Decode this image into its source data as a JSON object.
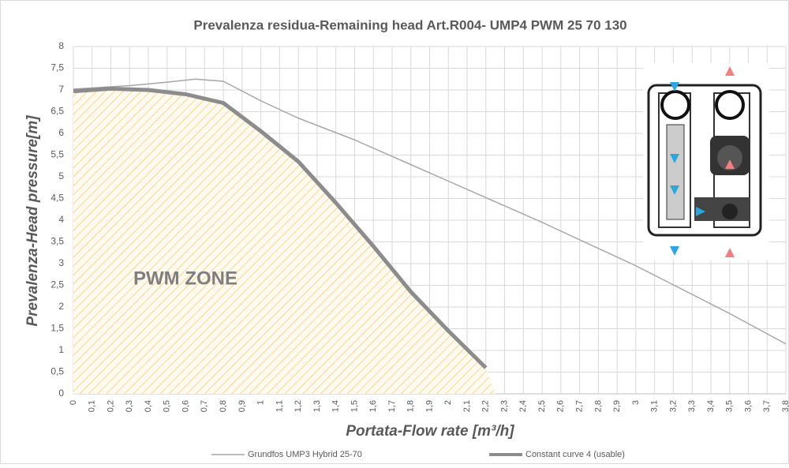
{
  "chart_data": {
    "type": "line",
    "title": "Prevalenza residua-Remaining head Art.R004- UMP4 PWM 25 70 130",
    "x_label": "Portata-Flow rate [m³/h]",
    "y_label": "Prevalenza-Head pressure[m]",
    "annotation": "PWM ZONE",
    "grid": true,
    "legend": "bottom",
    "xlim": [
      0,
      3.8
    ],
    "ylim": [
      0,
      8
    ],
    "xticks": [
      0,
      {
        "value": 0.1,
        "label": "0,1"
      },
      {
        "value": 0.2,
        "label": "0,2"
      },
      {
        "value": 0.3,
        "label": "0,3"
      },
      {
        "value": 0.4,
        "label": "0,4"
      },
      {
        "value": 0.5,
        "label": "0,5"
      },
      {
        "value": 0.6,
        "label": "0,6"
      },
      {
        "value": 0.7,
        "label": "0,7"
      },
      {
        "value": 0.8,
        "label": "0,8"
      },
      {
        "value": 0.9,
        "label": "0,9"
      },
      1,
      {
        "value": 1.1,
        "label": "1,1"
      },
      {
        "value": 1.2,
        "label": "1,2"
      },
      {
        "value": 1.3,
        "label": "1,3"
      },
      {
        "value": 1.4,
        "label": "1,4"
      },
      {
        "value": 1.5,
        "label": "1,5"
      },
      {
        "value": 1.6,
        "label": "1,6"
      },
      {
        "value": 1.7,
        "label": "1,7"
      },
      {
        "value": 1.8,
        "label": "1,8"
      },
      {
        "value": 1.9,
        "label": "1,9"
      },
      2,
      {
        "value": 2.1,
        "label": "2,1"
      },
      {
        "value": 2.2,
        "label": "2,2"
      },
      {
        "value": 2.3,
        "label": "2,3"
      },
      {
        "value": 2.4,
        "label": "2,4"
      },
      {
        "value": 2.5,
        "label": "2,5"
      },
      {
        "value": 2.6,
        "label": "2,6"
      },
      {
        "value": 2.7,
        "label": "2,7"
      },
      {
        "value": 2.8,
        "label": "2,8"
      },
      {
        "value": 2.9,
        "label": "2,9"
      },
      3,
      {
        "value": 3.1,
        "label": "3,1"
      },
      {
        "value": 3.2,
        "label": "3,2"
      },
      {
        "value": 3.3,
        "label": "3,3"
      },
      {
        "value": 3.4,
        "label": "3,4"
      },
      {
        "value": 3.5,
        "label": "3,5"
      },
      {
        "value": 3.6,
        "label": "3,6"
      },
      {
        "value": 3.7,
        "label": "3,7"
      },
      {
        "value": 3.8,
        "label": "3,8"
      }
    ],
    "yticks": [
      0,
      {
        "value": 0.5,
        "label": "0,5"
      },
      1,
      {
        "value": 1.5,
        "label": "1,5"
      },
      2,
      {
        "value": 2.5,
        "label": "2,5"
      },
      3,
      {
        "value": 3.5,
        "label": "3,5"
      },
      4,
      {
        "value": 4.5,
        "label": "4,5"
      },
      5,
      {
        "value": 5.5,
        "label": "5,5"
      },
      6,
      {
        "value": 6.5,
        "label": "6,5"
      },
      7,
      {
        "value": 7.5,
        "label": "7,5"
      },
      8
    ],
    "series": [
      {
        "name": "Grundfos UMP3 Hybrid 25-70",
        "color": "#a6a6a6",
        "x": [
          0,
          0.3,
          0.5,
          0.65,
          0.8,
          1.0,
          1.2,
          1.5,
          2.0,
          2.5,
          3.0,
          3.5,
          3.8
        ],
        "values": [
          7.02,
          7.1,
          7.18,
          7.25,
          7.2,
          6.75,
          6.35,
          5.85,
          4.9,
          3.95,
          2.95,
          1.85,
          1.15
        ]
      },
      {
        "name": "Constant curve 4 (usable)",
        "color": "#8c8c8c",
        "x": [
          0,
          0.2,
          0.4,
          0.6,
          0.8,
          1.0,
          1.2,
          1.4,
          1.6,
          1.8,
          2.0,
          2.2
        ],
        "values": [
          6.97,
          7.03,
          7.0,
          6.9,
          6.7,
          6.05,
          5.35,
          4.4,
          3.4,
          2.35,
          1.45,
          0.6
        ]
      }
    ]
  }
}
